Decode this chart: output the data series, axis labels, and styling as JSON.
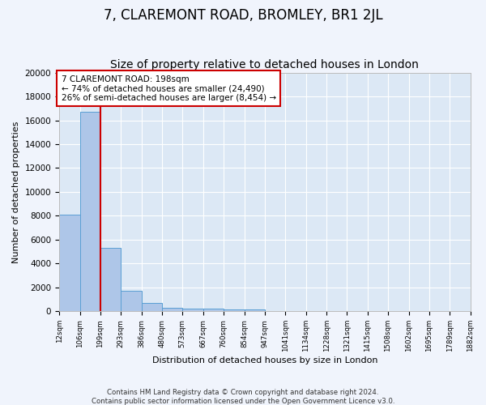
{
  "title": "7, CLAREMONT ROAD, BROMLEY, BR1 2JL",
  "subtitle": "Size of property relative to detached houses in London",
  "xlabel": "Distribution of detached houses by size in London",
  "ylabel": "Number of detached properties",
  "bins": [
    12,
    106,
    199,
    293,
    386,
    480,
    573,
    667,
    760,
    854,
    947,
    1041,
    1134,
    1228,
    1321,
    1415,
    1508,
    1602,
    1695,
    1789,
    1882
  ],
  "bar_heights": [
    8100,
    16700,
    5300,
    1750,
    700,
    300,
    220,
    200,
    150,
    130,
    0,
    0,
    0,
    0,
    0,
    0,
    0,
    0,
    0,
    0
  ],
  "bar_color": "#aec6e8",
  "bar_edge_color": "#5a9fd4",
  "annotation_text": "7 CLAREMONT ROAD: 198sqm\n← 74% of detached houses are smaller (24,490)\n26% of semi-detached houses are larger (8,454) →",
  "annotation_box_color": "#ffffff",
  "annotation_border_color": "#cc0000",
  "vline_color": "#cc0000",
  "vline_x": 199,
  "footnote": "Contains HM Land Registry data © Crown copyright and database right 2024.\nContains public sector information licensed under the Open Government Licence v3.0.",
  "ylim": [
    0,
    20000
  ],
  "plot_background": "#dce8f5",
  "fig_background": "#f0f4fc",
  "title_fontsize": 12,
  "subtitle_fontsize": 10,
  "tick_labels": [
    "12sqm",
    "106sqm",
    "199sqm",
    "293sqm",
    "386sqm",
    "480sqm",
    "573sqm",
    "667sqm",
    "760sqm",
    "854sqm",
    "947sqm",
    "1041sqm",
    "1134sqm",
    "1228sqm",
    "1321sqm",
    "1415sqm",
    "1508sqm",
    "1602sqm",
    "1695sqm",
    "1789sqm",
    "1882sqm"
  ]
}
